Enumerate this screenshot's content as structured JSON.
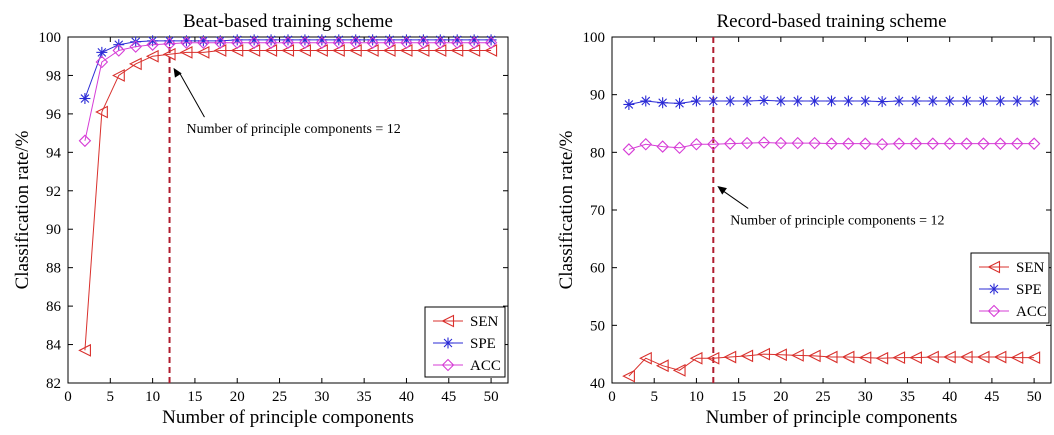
{
  "chart_data": [
    {
      "type": "line",
      "title": "Beat-based training scheme",
      "xlabel": "Number of principle components",
      "ylabel": "Classification rate/%",
      "xlim": [
        0,
        52
      ],
      "ylim": [
        82,
        100
      ],
      "xticks": [
        0,
        5,
        10,
        15,
        20,
        25,
        30,
        35,
        40,
        45,
        50
      ],
      "yticks": [
        82,
        84,
        86,
        88,
        90,
        92,
        94,
        96,
        98,
        100
      ],
      "x": [
        2,
        4,
        6,
        8,
        10,
        12,
        14,
        16,
        18,
        20,
        22,
        24,
        26,
        28,
        30,
        32,
        34,
        36,
        38,
        40,
        42,
        44,
        46,
        48,
        50
      ],
      "series": [
        {
          "name": "SEN",
          "color": "#d9302c",
          "marker": "triangle-left",
          "values": [
            83.7,
            96.1,
            98.0,
            98.6,
            99.0,
            99.1,
            99.2,
            99.2,
            99.3,
            99.3,
            99.3,
            99.3,
            99.3,
            99.3,
            99.3,
            99.3,
            99.3,
            99.3,
            99.3,
            99.3,
            99.3,
            99.3,
            99.3,
            99.3,
            99.3
          ]
        },
        {
          "name": "SPE",
          "color": "#2b2bd6",
          "marker": "asterisk",
          "values": [
            96.8,
            99.2,
            99.6,
            99.75,
            99.8,
            99.8,
            99.8,
            99.8,
            99.8,
            99.85,
            99.85,
            99.85,
            99.85,
            99.85,
            99.85,
            99.85,
            99.85,
            99.85,
            99.85,
            99.85,
            99.85,
            99.85,
            99.85,
            99.85,
            99.85
          ]
        },
        {
          "name": "ACC",
          "color": "#d63cd6",
          "marker": "diamond",
          "values": [
            94.6,
            98.7,
            99.3,
            99.5,
            99.6,
            99.65,
            99.7,
            99.7,
            99.7,
            99.7,
            99.7,
            99.7,
            99.7,
            99.7,
            99.7,
            99.7,
            99.7,
            99.7,
            99.7,
            99.7,
            99.7,
            99.7,
            99.7,
            99.7,
            99.7
          ]
        }
      ],
      "vline": {
        "x": 12,
        "color": "#b01c2e"
      },
      "annotation": {
        "text": "Number of principle components = 12",
        "arrow_to": [
          12,
          98.5
        ],
        "text_at": [
          14,
          95.0
        ]
      },
      "legend": {
        "labels": [
          "SEN",
          "SPE",
          "ACC"
        ],
        "placement": "bottom-right"
      },
      "grid": false
    },
    {
      "type": "line",
      "title": "Record-based training scheme",
      "xlabel": "Number of principle components",
      "ylabel": "Classification rate/%",
      "xlim": [
        0,
        52
      ],
      "ylim": [
        40,
        100
      ],
      "xticks": [
        0,
        5,
        10,
        15,
        20,
        25,
        30,
        35,
        40,
        45,
        50
      ],
      "yticks": [
        40,
        50,
        60,
        70,
        80,
        90,
        100
      ],
      "x": [
        2,
        4,
        6,
        8,
        10,
        12,
        14,
        16,
        18,
        20,
        22,
        24,
        26,
        28,
        30,
        32,
        34,
        36,
        38,
        40,
        42,
        44,
        46,
        48,
        50
      ],
      "series": [
        {
          "name": "SEN",
          "color": "#d9302c",
          "marker": "triangle-left",
          "values": [
            41.2,
            44.3,
            43.0,
            42.2,
            44.3,
            44.3,
            44.5,
            44.7,
            45.0,
            44.9,
            44.8,
            44.7,
            44.5,
            44.5,
            44.4,
            44.3,
            44.4,
            44.4,
            44.5,
            44.5,
            44.5,
            44.5,
            44.5,
            44.4,
            44.4
          ]
        },
        {
          "name": "SPE",
          "color": "#2b2bd6",
          "marker": "asterisk",
          "values": [
            88.3,
            88.9,
            88.6,
            88.5,
            88.9,
            88.9,
            88.9,
            88.9,
            89.0,
            88.9,
            88.9,
            88.9,
            88.9,
            88.9,
            88.9,
            88.8,
            88.9,
            88.9,
            88.9,
            88.9,
            88.9,
            88.9,
            88.9,
            88.9,
            88.9
          ]
        },
        {
          "name": "ACC",
          "color": "#d63cd6",
          "marker": "diamond",
          "values": [
            80.5,
            81.4,
            81.0,
            80.8,
            81.4,
            81.4,
            81.5,
            81.6,
            81.7,
            81.6,
            81.6,
            81.6,
            81.5,
            81.5,
            81.5,
            81.4,
            81.5,
            81.5,
            81.5,
            81.5,
            81.5,
            81.5,
            81.5,
            81.5,
            81.5
          ]
        }
      ],
      "vline": {
        "x": 12,
        "color": "#b01c2e"
      },
      "annotation": {
        "text": "Number of principle components = 12",
        "arrow_to": [
          12,
          74.5
        ],
        "text_at": [
          14,
          67.5
        ]
      },
      "legend": {
        "labels": [
          "SEN",
          "SPE",
          "ACC"
        ],
        "placement": "middle-right"
      },
      "grid": false
    }
  ]
}
